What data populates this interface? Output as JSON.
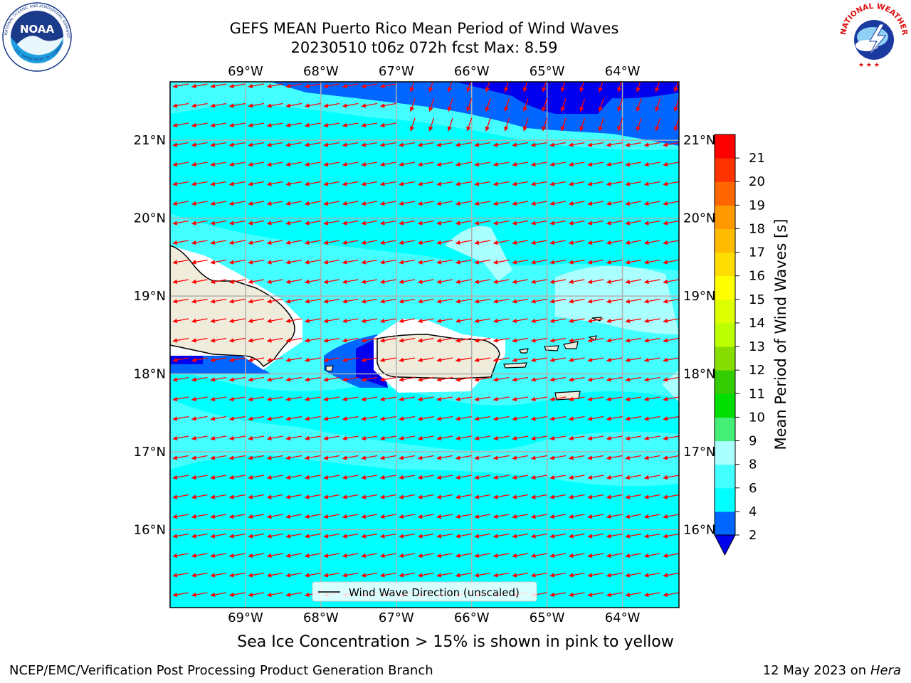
{
  "header": {
    "title_line1": "GEFS MEAN Puerto Rico Mean Period of Wind Waves",
    "title_line2": "20230510 t06z 072h fcst   Max: 8.59"
  },
  "logos": {
    "left": "noaa-logo",
    "right": "nws-logo",
    "left_text": "NOAA",
    "left_ring_text": "NATIONAL OCEANIC AND ATMOSPHERIC ADMINISTRATION",
    "left_ring_text_bottom": "U.S. DEPARTMENT OF COMMERCE",
    "right_ring_text": "NATIONAL WEATHER SERVICE"
  },
  "map": {
    "lon_labels": [
      "69°W",
      "68°W",
      "67°W",
      "66°W",
      "65°W",
      "64°W"
    ],
    "lat_labels": [
      "21°N",
      "20°N",
      "19°N",
      "18°N",
      "17°N",
      "16°N"
    ],
    "legend_label": "Wind Wave Direction (unscaled)",
    "extent": {
      "lon_min": -70.0,
      "lon_max": -63.25,
      "lat_min": 15.0,
      "lat_max": 21.75
    },
    "colors": {
      "land": "#efecdc",
      "ocean_base": "#00ffff",
      "arrow": "#ff0000"
    }
  },
  "colorbar": {
    "title": "Mean Period of Wind Waves [s]",
    "tick_labels": [
      "2",
      "4",
      "6",
      "8",
      "9",
      "10",
      "11",
      "12",
      "13",
      "14",
      "15",
      "16",
      "17",
      "18",
      "19",
      "20",
      "21"
    ],
    "colors": [
      "#0066ff",
      "#00ffff",
      "#44ffff",
      "#aaffff",
      "#44ee77",
      "#00dd00",
      "#33cc00",
      "#88dd00",
      "#bbff00",
      "#ddff00",
      "#ffff00",
      "#ffdd00",
      "#ffbb00",
      "#ff9900",
      "#ff6600",
      "#ff3300",
      "#ff0000"
    ],
    "under_color": "#0000ee"
  },
  "footer": {
    "ice_note": "Sea Ice Concentration > 15% is shown in pink to yellow",
    "left": "NCEP/EMC/Verification Post Processing Product Generation Branch",
    "right_date": "12 May 2023 on",
    "right_host": "Hera"
  }
}
